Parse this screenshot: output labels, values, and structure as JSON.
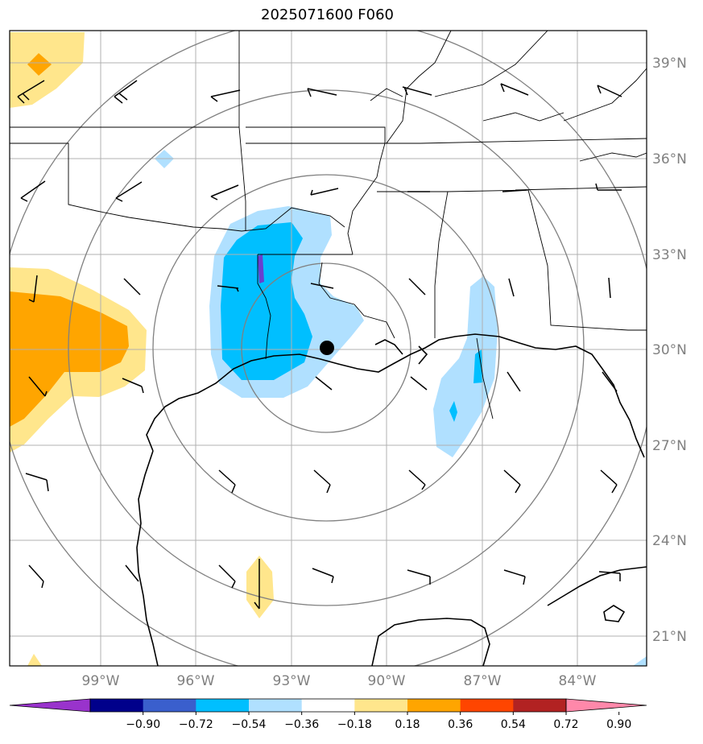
{
  "title": "2025071600 F060",
  "lat_labels": [
    "39°N",
    "36°N",
    "33°N",
    "30°N",
    "27°N",
    "24°N",
    "21°N"
  ],
  "lon_labels": [
    "99°W",
    "96°W",
    "93°W",
    "90°W",
    "87°W",
    "84°W"
  ],
  "colorbar": {
    "labels": [
      "−0.90",
      "−0.72",
      "−0.54",
      "−0.36",
      "−0.18",
      "0.18",
      "0.36",
      "0.54",
      "0.72",
      "0.90"
    ],
    "colors": [
      "#9933cc",
      "#00008b",
      "#3a5fcd",
      "#00bfff",
      "#b0e0ff",
      "#ffffff",
      "#ffe68c",
      "#ffa500",
      "#ff4500",
      "#b22222",
      "#ff88aa"
    ]
  },
  "colors": {
    "light_blue": "#b0e0ff",
    "deep_sky_blue": "#00bfff",
    "purple": "#6a3fd0",
    "light_yellow": "#ffe68c",
    "orange": "#ffa500",
    "grid": "#b0b0b0",
    "range_rings": "#808080"
  },
  "storm_center": {
    "lat": 30.0,
    "lon": -91.8
  }
}
